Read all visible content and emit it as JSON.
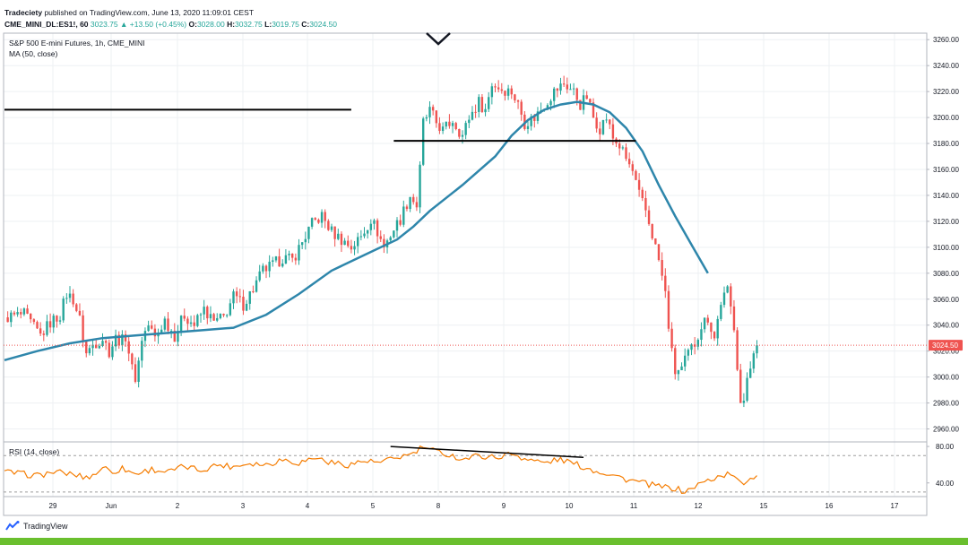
{
  "header": {
    "publisher": "Tradeciety",
    "published_text": "published on TradingView.com, June 13, 2020 11:09:01 CEST",
    "symbol": "CME_MINI_DL:ES1!, 60",
    "last": "3023.75",
    "change": "▲ +13.50 (+0.45%)",
    "o_label": "O:",
    "o_value": "3028.00",
    "h_label": "H:",
    "h_value": "3032.75",
    "l_label": "L:",
    "l_value": "3019.75",
    "c_label": "C:",
    "c_value": "3024.50"
  },
  "legend": {
    "instrument": "S&P 500 E-mini Futures, 1h, CME_MINI",
    "ma": "MA (50, close)",
    "rsi": "RSI (14, close)"
  },
  "brand": {
    "name": "TradingView"
  },
  "chart_data": [
    {
      "type": "candlestick",
      "title": "S&P 500 E-mini Futures, 1h, CME_MINI",
      "ylim": [
        2950,
        3265
      ],
      "y_ticks": [
        2960,
        2980,
        3000,
        3020,
        3040,
        3060,
        3080,
        3100,
        3120,
        3140,
        3160,
        3180,
        3200,
        3220,
        3240,
        3260
      ],
      "x_ticks": [
        "29",
        "Jun",
        "2",
        "3",
        "4",
        "5",
        "8",
        "9",
        "10",
        "11",
        "12",
        "15",
        "16",
        "17"
      ],
      "last_price_label": "3024.50",
      "last_price": 3024.5,
      "colors": {
        "up": "#26a69a",
        "down": "#ef5350",
        "ma": "#2e86ab",
        "price_line": "#ef5350"
      },
      "price_path": [
        [
          0,
          3046
        ],
        [
          6,
          3048
        ],
        [
          9,
          3038
        ],
        [
          11,
          3032
        ],
        [
          14,
          3042
        ],
        [
          17,
          3048
        ],
        [
          19,
          3064
        ],
        [
          21,
          3060
        ],
        [
          23,
          3044
        ],
        [
          25,
          3018
        ],
        [
          27,
          3025
        ],
        [
          30,
          3030
        ],
        [
          32,
          3020
        ],
        [
          34,
          3030
        ],
        [
          36,
          3028
        ],
        [
          37,
          3032
        ],
        [
          38,
          3020
        ],
        [
          39,
          3006
        ],
        [
          40,
          3000
        ],
        [
          41,
          3012
        ],
        [
          42,
          3030
        ],
        [
          44,
          3040
        ],
        [
          46,
          3030
        ],
        [
          49,
          3044
        ],
        [
          52,
          3032
        ],
        [
          55,
          3048
        ],
        [
          58,
          3040
        ],
        [
          61,
          3052
        ],
        [
          64,
          3042
        ],
        [
          67,
          3046
        ],
        [
          70,
          3062
        ],
        [
          73,
          3056
        ],
        [
          76,
          3068
        ],
        [
          79,
          3082
        ],
        [
          82,
          3086
        ],
        [
          85,
          3092
        ],
        [
          88,
          3090
        ],
        [
          91,
          3104
        ],
        [
          94,
          3118
        ],
        [
          97,
          3124
        ],
        [
          100,
          3112
        ],
        [
          103,
          3106
        ],
        [
          106,
          3100
        ],
        [
          109,
          3108
        ],
        [
          112,
          3122
        ],
        [
          114,
          3112
        ],
        [
          116,
          3100
        ],
        [
          118,
          3110
        ],
        [
          121,
          3122
        ],
        [
          124,
          3140
        ],
        [
          126,
          3132
        ],
        [
          127,
          3160
        ],
        [
          128,
          3196
        ],
        [
          130,
          3205
        ],
        [
          132,
          3196
        ],
        [
          134,
          3190
        ],
        [
          137,
          3198
        ],
        [
          140,
          3186
        ],
        [
          142,
          3200
        ],
        [
          145,
          3212
        ],
        [
          147,
          3206
        ],
        [
          149,
          3226
        ],
        [
          152,
          3222
        ],
        [
          155,
          3220
        ],
        [
          157,
          3210
        ],
        [
          159,
          3196
        ],
        [
          162,
          3200
        ],
        [
          165,
          3210
        ],
        [
          168,
          3220
        ],
        [
          171,
          3226
        ],
        [
          174,
          3220
        ],
        [
          176,
          3210
        ],
        [
          178,
          3216
        ],
        [
          180,
          3200
        ],
        [
          182,
          3192
        ],
        [
          184,
          3200
        ],
        [
          186,
          3184
        ],
        [
          188,
          3178
        ],
        [
          190,
          3168
        ],
        [
          192,
          3158
        ],
        [
          194,
          3140
        ],
        [
          196,
          3128
        ],
        [
          198,
          3110
        ],
        [
          200,
          3090
        ],
        [
          202,
          3064
        ],
        [
          203,
          3040
        ],
        [
          204,
          3018
        ],
        [
          205,
          3004
        ],
        [
          207,
          3006
        ],
        [
          209,
          3018
        ],
        [
          211,
          3026
        ],
        [
          213,
          3040
        ],
        [
          215,
          3046
        ],
        [
          217,
          3030
        ],
        [
          219,
          3058
        ],
        [
          221,
          3066
        ],
        [
          223,
          3040
        ],
        [
          224,
          3010
        ],
        [
          225,
          2980
        ],
        [
          226,
          2978
        ],
        [
          227,
          3000
        ],
        [
          228,
          3010
        ],
        [
          229,
          3022
        ],
        [
          230,
          3024.5
        ]
      ],
      "ma_path": [
        [
          0,
          3013
        ],
        [
          10,
          3020
        ],
        [
          20,
          3026
        ],
        [
          30,
          3030
        ],
        [
          40,
          3032
        ],
        [
          50,
          3034
        ],
        [
          60,
          3036
        ],
        [
          70,
          3038
        ],
        [
          80,
          3048
        ],
        [
          90,
          3064
        ],
        [
          100,
          3082
        ],
        [
          110,
          3094
        ],
        [
          120,
          3106
        ],
        [
          125,
          3116
        ],
        [
          130,
          3128
        ],
        [
          140,
          3148
        ],
        [
          150,
          3170
        ],
        [
          155,
          3186
        ],
        [
          160,
          3198
        ],
        [
          165,
          3206
        ],
        [
          170,
          3210
        ],
        [
          175,
          3212
        ],
        [
          180,
          3210
        ],
        [
          185,
          3204
        ],
        [
          190,
          3192
        ],
        [
          195,
          3174
        ],
        [
          200,
          3148
        ],
        [
          205,
          3124
        ],
        [
          210,
          3102
        ],
        [
          215,
          3080
        ]
      ],
      "annotations": [
        {
          "type": "hline",
          "price": 3206,
          "from_bar": 0,
          "to_bar": 106
        },
        {
          "type": "hline",
          "price": 3182,
          "from_bar": 119,
          "to_bar": 193
        }
      ]
    },
    {
      "type": "line",
      "title": "RSI (14, close)",
      "ylim": [
        25,
        85
      ],
      "y_ticks": [
        40,
        80
      ],
      "bands": [
        70,
        30
      ],
      "colors": {
        "line": "#f57c00",
        "band": "#9e9e9e"
      },
      "rsi_path": [
        [
          0,
          52
        ],
        [
          5,
          50
        ],
        [
          10,
          48
        ],
        [
          15,
          52
        ],
        [
          20,
          50
        ],
        [
          25,
          46
        ],
        [
          28,
          50
        ],
        [
          30,
          58
        ],
        [
          33,
          52
        ],
        [
          36,
          56
        ],
        [
          40,
          50
        ],
        [
          45,
          55
        ],
        [
          50,
          52
        ],
        [
          55,
          58
        ],
        [
          60,
          54
        ],
        [
          65,
          60
        ],
        [
          70,
          58
        ],
        [
          75,
          62
        ],
        [
          80,
          60
        ],
        [
          85,
          66
        ],
        [
          90,
          62
        ],
        [
          95,
          68
        ],
        [
          100,
          62
        ],
        [
          105,
          60
        ],
        [
          110,
          64
        ],
        [
          115,
          62
        ],
        [
          120,
          68
        ],
        [
          125,
          72
        ],
        [
          128,
          80
        ],
        [
          130,
          76
        ],
        [
          135,
          72
        ],
        [
          140,
          66
        ],
        [
          145,
          70
        ],
        [
          150,
          68
        ],
        [
          155,
          72
        ],
        [
          160,
          66
        ],
        [
          165,
          62
        ],
        [
          170,
          66
        ],
        [
          175,
          60
        ],
        [
          180,
          54
        ],
        [
          185,
          50
        ],
        [
          190,
          44
        ],
        [
          195,
          40
        ],
        [
          200,
          36
        ],
        [
          205,
          34
        ],
        [
          208,
          30
        ],
        [
          212,
          38
        ],
        [
          216,
          44
        ],
        [
          219,
          48
        ],
        [
          222,
          50
        ],
        [
          224,
          42
        ],
        [
          226,
          40
        ],
        [
          228,
          46
        ],
        [
          230,
          48
        ]
      ],
      "annotations": [
        {
          "type": "trendline",
          "from": [
            118,
            80
          ],
          "to": [
            177,
            68
          ]
        }
      ]
    }
  ]
}
